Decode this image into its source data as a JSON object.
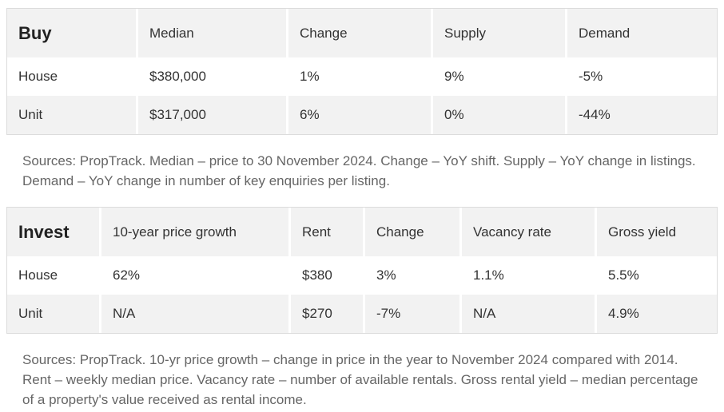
{
  "buy": {
    "title": "Buy",
    "headers": [
      "Median",
      "Change",
      "Supply",
      "Demand"
    ],
    "rows": [
      [
        "House",
        "$380,000",
        "1%",
        "9%",
        "-5%"
      ],
      [
        "Unit",
        "$317,000",
        "6%",
        "0%",
        "-44%"
      ]
    ],
    "note": "Sources: PropTrack. Median – price to 30 November 2024. Change – YoY shift. Supply – YoY change in listings. Demand – YoY change in number of key enquiries per listing."
  },
  "invest": {
    "title": "Invest",
    "headers": [
      "10-year price growth",
      "Rent",
      "Change",
      "Vacancy rate",
      "Gross yield"
    ],
    "rows": [
      [
        "House",
        "62%",
        "$380",
        "3%",
        "1.1%",
        "5.5%"
      ],
      [
        "Unit",
        "N/A",
        "$270",
        "-7%",
        "N/A",
        "4.9%"
      ]
    ],
    "note": "Sources: PropTrack. 10-yr price growth – change in price in the year to November 2024 compared with 2014. Rent – weekly median price. Vacancy rate – number of available rentals. Gross rental yield – median percentage of a property's value received as rental income."
  }
}
